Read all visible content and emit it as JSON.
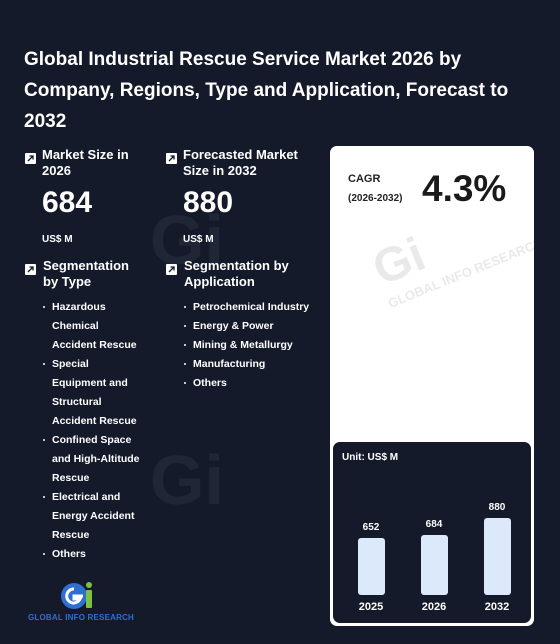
{
  "title": "Global Industrial Rescue Service Market 2026 by Company, Regions, Type and Application, Forecast to 2032",
  "market_size": {
    "label": "Market Size in 2026",
    "value": "684",
    "unit": "US$ M"
  },
  "forecast_size": {
    "label": "Forecasted Market Size in 2032",
    "value": "880",
    "unit": "US$ M"
  },
  "seg_type": {
    "label": "Segmentation by Type",
    "items": [
      "Hazardous Chemical Accident Rescue",
      "Special Equipment and Structural Accident Rescue",
      "Confined Space and High-Altitude Rescue",
      "Electrical and Energy Accident Rescue",
      "Others"
    ]
  },
  "seg_app": {
    "label": "Segmentation by Application",
    "items": [
      "Petrochemical Industry",
      "Energy & Power",
      "Mining & Metallurgy",
      "Manufacturing",
      "Others"
    ]
  },
  "cagr": {
    "label": "CAGR",
    "period": "(2026-2032)",
    "value": "4.3%"
  },
  "chart_data": {
    "type": "bar",
    "unit_label": "Unit: US$ M",
    "categories": [
      "2025",
      "2026",
      "2032"
    ],
    "values": [
      652,
      684,
      880
    ],
    "bar_color": "#dce9fb"
  },
  "logo": {
    "text": "GLOBAL INFO RESEARCH",
    "mark": "Gi"
  },
  "watermark": "GLOBAL INFO RESEARCH",
  "colors": {
    "background": "#151a2b",
    "card": "#ffffff",
    "accent": "#2f6fd1",
    "logo_green": "#7cc242"
  }
}
